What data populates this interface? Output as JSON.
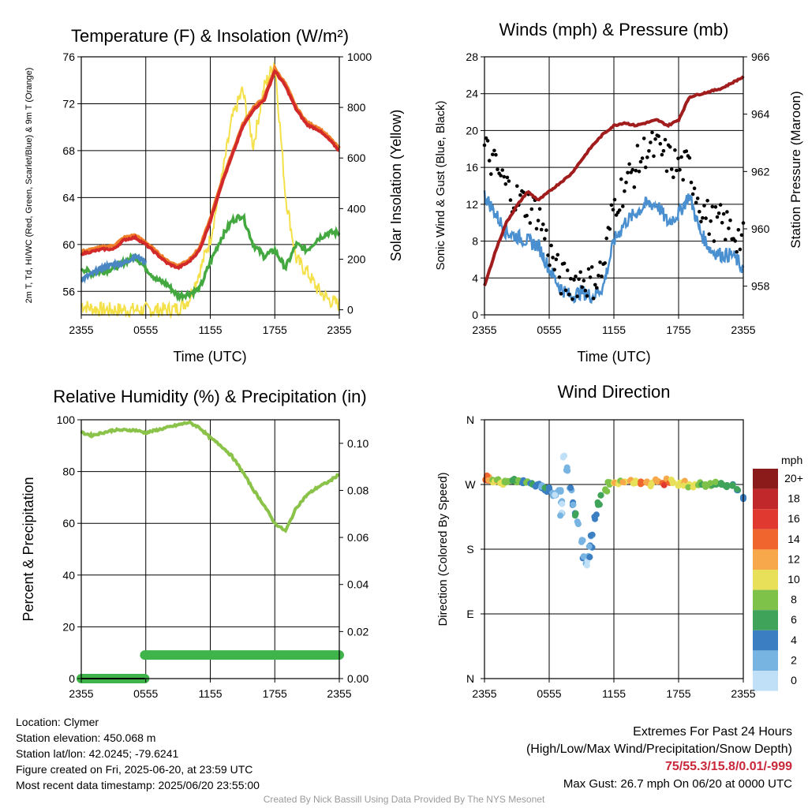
{
  "chart_data": [
    {
      "type": "line",
      "title": "Temperature (F) & Insolation (W/m²)",
      "xlabel": "Time (UTC)",
      "ylabel_left": "2m T, Td, HI/WC (Red, Green, Scarlet/Blue) & 9m T (Orange)",
      "ylabel_right": "Solar Insolation (Yellow)",
      "x_ticks": [
        "2355",
        "0555",
        "1155",
        "1755",
        "2355"
      ],
      "ylim_left": [
        54,
        76
      ],
      "y_ticks_left": [
        56,
        60,
        64,
        68,
        72,
        76
      ],
      "ylim_right": [
        -20,
        1000
      ],
      "y_ticks_right": [
        0,
        200,
        400,
        600,
        800,
        1000
      ],
      "x_hours": [
        0,
        1,
        2,
        3,
        4,
        5,
        6,
        7,
        8,
        9,
        10,
        11,
        12,
        13,
        14,
        15,
        16,
        17,
        18,
        19,
        20,
        21,
        22,
        23,
        24
      ],
      "series": [
        {
          "role": "temperature_2m",
          "color": "#d22a2a",
          "axis": "left",
          "values": [
            59.2,
            59.4,
            59.6,
            59.6,
            60.4,
            60.6,
            60.0,
            59.2,
            58.4,
            58.0,
            58.5,
            59.5,
            62,
            65,
            67.5,
            70,
            71.5,
            72.3,
            74.8,
            73.5,
            71.5,
            70.2,
            69.8,
            69.0,
            68.0
          ]
        },
        {
          "role": "temperature_9m",
          "color": "#f07f2a",
          "axis": "left",
          "values": [
            59.4,
            59.6,
            59.8,
            59.9,
            60.6,
            60.8,
            60.2,
            59.4,
            58.6,
            58.2,
            58.7,
            59.7,
            62.2,
            65.2,
            67.7,
            70.2,
            71.7,
            72.5,
            75.0,
            73.7,
            71.7,
            70.4,
            70.0,
            69.2,
            68.2
          ]
        },
        {
          "role": "heat_index_wind_chill",
          "color": "#4a86c2",
          "axis": "left",
          "values": [
            57.0,
            57.5,
            58.0,
            58.3,
            58.4,
            59.0,
            58.6
          ]
        },
        {
          "role": "dewpoint",
          "color": "#43a83f",
          "axis": "left",
          "values": [
            58.0,
            57.5,
            57.7,
            58.0,
            58.5,
            59.0,
            58.0,
            57.0,
            56.6,
            55.6,
            55.8,
            56.2,
            58.5,
            60.5,
            62,
            62.5,
            60,
            59,
            59.5,
            58,
            60,
            59.5,
            60.5,
            61,
            61
          ]
        },
        {
          "role": "solar_insolation",
          "color": "#f4e049",
          "axis": "right",
          "values": [
            20,
            5,
            0,
            0,
            0,
            0,
            0,
            0,
            0,
            5,
            40,
            150,
            280,
            500,
            750,
            870,
            650,
            880,
            980,
            450,
            200,
            150,
            80,
            40,
            20
          ]
        }
      ]
    },
    {
      "type": "scatter",
      "title": "Winds (mph) & Pressure (mb)",
      "xlabel": "Time (UTC)",
      "ylabel_left": "Sonic Wind & Gust (Blue, Black)",
      "ylabel_right": "Station Pressure (Maroon)",
      "x_ticks": [
        "2355",
        "0555",
        "1155",
        "1755",
        "2355"
      ],
      "ylim_left": [
        0,
        28
      ],
      "y_ticks_left": [
        0,
        4,
        8,
        12,
        16,
        20,
        24,
        28
      ],
      "ylim_right": [
        957.0,
        966.0
      ],
      "y_ticks_right": [
        958,
        960,
        962,
        964,
        966
      ],
      "x_hours": [
        0,
        1,
        2,
        3,
        4,
        5,
        6,
        7,
        8,
        9,
        10,
        11,
        12,
        13,
        14,
        15,
        16,
        17,
        18,
        19,
        20,
        21,
        22,
        23,
        24
      ],
      "series": [
        {
          "role": "sustained_wind",
          "color": "#4a8fd0",
          "values": [
            13,
            11,
            9,
            8.5,
            8,
            7.5,
            5,
            3,
            2,
            2.5,
            2,
            3,
            8,
            10,
            11,
            12,
            12,
            10,
            11,
            13,
            9,
            7,
            6.5,
            6.5,
            5
          ]
        },
        {
          "role": "gust",
          "color": "#000000",
          "values": [
            18,
            16,
            14,
            12.5,
            12,
            11,
            7,
            4,
            3.5,
            4,
            3.5,
            5,
            12,
            14,
            16,
            18,
            18,
            17,
            16,
            16,
            12,
            10,
            10,
            9,
            8
          ]
        },
        {
          "role": "station_pressure",
          "color": "#a11c1c",
          "values": [
            958.0,
            959.2,
            960.2,
            960.8,
            961.3,
            961.0,
            961.3,
            961.6,
            961.9,
            962.4,
            962.9,
            963.3,
            963.6,
            963.7,
            963.6,
            963.7,
            963.8,
            963.6,
            963.8,
            964.6,
            964.7,
            964.8,
            964.9,
            965.1,
            965.3
          ]
        }
      ]
    },
    {
      "type": "line",
      "title": "Relative Humidity (%) & Precipitation (in)",
      "xlabel": "",
      "ylabel_left": "Percent & Precipitation",
      "x_ticks": [
        "2355",
        "0555",
        "1155",
        "1755",
        "2355"
      ],
      "ylim_left": [
        0,
        100
      ],
      "y_ticks_left": [
        0,
        20,
        40,
        60,
        80,
        100
      ],
      "ylim_right": [
        0.0,
        0.11
      ],
      "y_ticks_right": [
        "0.00",
        "0.02",
        "0.04",
        "0.06",
        "0.08",
        "0.10"
      ],
      "x_hours": [
        0,
        1,
        2,
        3,
        4,
        5,
        6,
        7,
        8,
        9,
        10,
        11,
        12,
        13,
        14,
        15,
        16,
        17,
        18,
        19,
        20,
        21,
        22,
        23,
        24
      ],
      "series": [
        {
          "role": "relative_humidity",
          "color": "#8bc34a",
          "values": [
            95,
            94,
            95,
            96,
            96,
            96,
            95,
            96,
            97,
            98,
            99,
            97,
            93,
            90,
            86,
            80,
            73,
            67,
            60,
            57,
            66,
            71,
            74,
            76,
            79
          ]
        },
        {
          "role": "precipitation",
          "color": "#3fb44a",
          "x": [
            0,
            5.9,
            5.9,
            24
          ],
          "values": [
            0.0,
            0.0,
            0.01,
            0.01
          ]
        }
      ]
    },
    {
      "type": "scatter",
      "title": "Wind Direction",
      "ylabel_left": "Direction (Colored By Speed)",
      "x_ticks": [
        "2355",
        "0555",
        "1155",
        "1755",
        "2355"
      ],
      "y_ticks_left": [
        "N",
        "E",
        "S",
        "W",
        "N"
      ],
      "ylim_left": [
        0,
        360
      ],
      "legend_title": "mph",
      "legend_labels": [
        "20+",
        "18",
        "16",
        "14",
        "12",
        "10",
        "8",
        "6",
        "4",
        "2",
        "0"
      ],
      "legend_colors": [
        "#8b1a1a",
        "#c0282b",
        "#e03a30",
        "#f0652d",
        "#f7a84a",
        "#e8e058",
        "#7ec24a",
        "#3fa35a",
        "#3b7fc2",
        "#78b4e2",
        "#bfe0f6"
      ],
      "points": [
        [
          0.1,
          277,
          14
        ],
        [
          0.3,
          279,
          13
        ],
        [
          0.5,
          275,
          11
        ],
        [
          0.8,
          273,
          9
        ],
        [
          1.0,
          274,
          10
        ],
        [
          1.3,
          276,
          8
        ],
        [
          1.6,
          273,
          9
        ],
        [
          1.9,
          275,
          7
        ],
        [
          2.2,
          274,
          8
        ],
        [
          2.6,
          276,
          6
        ],
        [
          3.0,
          273,
          7
        ],
        [
          3.3,
          275,
          6
        ],
        [
          3.6,
          272,
          5
        ],
        [
          4.0,
          274,
          6
        ],
        [
          4.4,
          272,
          5
        ],
        [
          4.9,
          270,
          4
        ],
        [
          5.3,
          265,
          3
        ],
        [
          5.6,
          262,
          4
        ],
        [
          6.0,
          265,
          3
        ],
        [
          6.3,
          258,
          2
        ],
        [
          6.6,
          255,
          1
        ],
        [
          6.9,
          262,
          2
        ],
        [
          7.1,
          245,
          1
        ],
        [
          7.2,
          230,
          1
        ],
        [
          7.4,
          310,
          0
        ],
        [
          7.6,
          290,
          1
        ],
        [
          7.9,
          265,
          2
        ],
        [
          8.2,
          245,
          3
        ],
        [
          8.4,
          230,
          4
        ],
        [
          8.7,
          215,
          2
        ],
        [
          9.0,
          190,
          2
        ],
        [
          9.2,
          170,
          2
        ],
        [
          9.4,
          160,
          1
        ],
        [
          9.6,
          170,
          2
        ],
        [
          9.8,
          185,
          3
        ],
        [
          10.0,
          200,
          3
        ],
        [
          10.2,
          225,
          4
        ],
        [
          10.5,
          245,
          5
        ],
        [
          10.8,
          255,
          6
        ],
        [
          11.2,
          262,
          7
        ],
        [
          11.6,
          270,
          8
        ],
        [
          12.0,
          272,
          10
        ],
        [
          12.5,
          274,
          9
        ],
        [
          13.0,
          273,
          11
        ],
        [
          13.5,
          275,
          12
        ],
        [
          14.0,
          272,
          10
        ],
        [
          14.5,
          274,
          13
        ],
        [
          15.0,
          273,
          11
        ],
        [
          15.5,
          271,
          9
        ],
        [
          16.0,
          274,
          12
        ],
        [
          16.5,
          272,
          14
        ],
        [
          17.0,
          275,
          13
        ],
        [
          17.5,
          273,
          10
        ],
        [
          18.0,
          270,
          9
        ],
        [
          18.5,
          271,
          11
        ],
        [
          19.0,
          268,
          8
        ],
        [
          19.5,
          270,
          9
        ],
        [
          20.0,
          273,
          7
        ],
        [
          20.5,
          270,
          8
        ],
        [
          21.0,
          268,
          7
        ],
        [
          21.5,
          270,
          6
        ],
        [
          22.0,
          271,
          7
        ],
        [
          22.5,
          269,
          6
        ],
        [
          23.0,
          268,
          5
        ],
        [
          23.5,
          262,
          5
        ],
        [
          24.0,
          250,
          4
        ]
      ]
    }
  ],
  "station": {
    "location": "Location: Clymer",
    "elevation": "Station elevation: 450.068 m",
    "latlon": "Station lat/lon: 42.0245; -79.6241",
    "created": "Figure created on Fri, 2025-06-20, at 23:59 UTC",
    "recent": "Most recent data timestamp: 2025/06/20 23:55:00"
  },
  "extremes": {
    "title": "Extremes For Past 24 Hours",
    "subtitle": "(High/Low/Max Wind/Precipitation/Snow Depth)",
    "values": "75/55.3/15.8/0.01/-999",
    "max_gust": "Max Gust: 26.7 mph On 06/20 at 0000 UTC"
  },
  "credit": "Created By Nick Bassill Using Data Provided By The NYS Mesonet"
}
